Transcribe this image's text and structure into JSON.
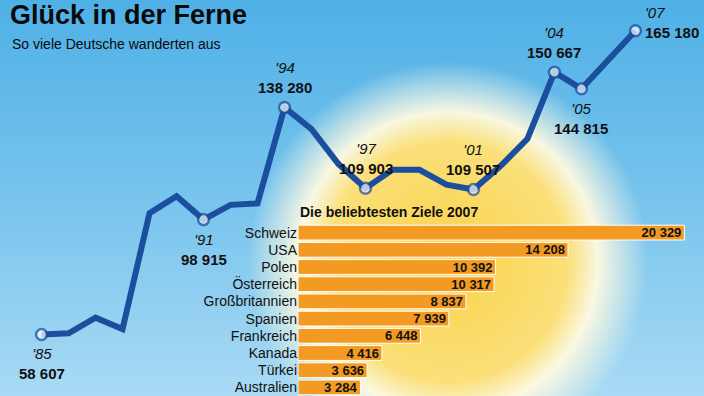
{
  "chart_data": [
    {
      "type": "line",
      "title": "Glück in der Ferne",
      "subtitle": "So viele Deutsche wanderten aus",
      "categories": [
        "'85",
        null,
        null,
        null,
        null,
        null,
        "'91",
        null,
        null,
        "'94",
        null,
        null,
        "'97",
        null,
        null,
        null,
        "'01",
        null,
        null,
        "'04",
        "'05",
        null,
        "'07"
      ],
      "values": [
        58607,
        59000,
        64500,
        60500,
        101200,
        107100,
        98915,
        104100,
        104600,
        138280,
        130700,
        118400,
        109903,
        116400,
        116400,
        111200,
        109507,
        117700,
        127300,
        150667,
        144815,
        155300,
        165180
      ],
      "value_labels": [
        "58 607",
        null,
        null,
        null,
        null,
        null,
        "98 915",
        null,
        null,
        "138 280",
        null,
        null,
        "109 903",
        null,
        null,
        null,
        "109 507",
        null,
        null,
        "150 667",
        "144 815",
        null,
        "165 180"
      ],
      "ylim": [
        37000,
        176000
      ],
      "color": "#1b4f9e",
      "marker": "circle",
      "data_labels": true,
      "tick_labels": false,
      "grid": false
    },
    {
      "type": "bar",
      "title": "Die beliebtesten Ziele 2007",
      "orientation": "horizontal",
      "categories": [
        "Schweiz",
        "USA",
        "Polen",
        "Österreich",
        "Großbritannien",
        "Spanien",
        "Frankreich",
        "Kanada",
        "Türkei",
        "Australien"
      ],
      "values": [
        20329,
        14208,
        10392,
        10317,
        8837,
        7939,
        6448,
        4416,
        3636,
        3284
      ],
      "value_labels": [
        "20 329",
        "14 208",
        "10 392",
        "10 317",
        "8 837",
        "7 939",
        "6 448",
        "4 416",
        "3 636",
        "3 284"
      ],
      "xlim": [
        0,
        20400
      ],
      "color": "#f29a22",
      "data_labels": true,
      "tick_labels": "y",
      "grid": false
    }
  ]
}
